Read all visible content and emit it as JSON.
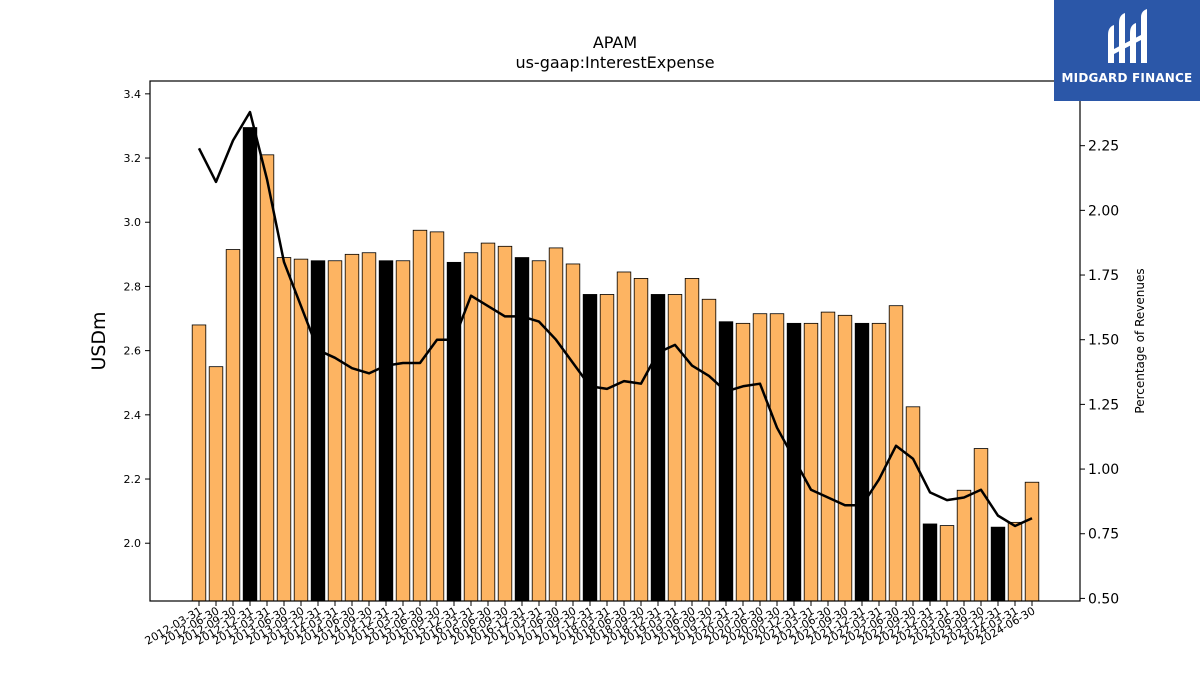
{
  "brand": {
    "name": "MIDGARD FINANCE",
    "color": "#2b57a8"
  },
  "colors": {
    "bar_default": "#fdb462",
    "bar_highlight": "#000000",
    "line": "#000000"
  },
  "chart_data": {
    "type": "bar",
    "title": "APAM",
    "subtitle": "us-gaap:InterestExpense",
    "ylabel": "USDm",
    "y2label": "Percentage of Revenues",
    "ylim": [
      1.82,
      3.44
    ],
    "y2lim": [
      0.49,
      2.5
    ],
    "yticks": [
      "2.0",
      "2.2",
      "2.4",
      "2.6",
      "2.8",
      "3.0",
      "3.2",
      "3.4"
    ],
    "y2ticks": [
      "0.50",
      "0.75",
      "1.00",
      "1.25",
      "1.50",
      "1.75",
      "2.00",
      "2.25"
    ],
    "categories": [
      "2012-03-31",
      "2012-06-30",
      "2012-09-30",
      "2012-12-31",
      "2013-03-31",
      "2013-06-30",
      "2013-09-30",
      "2013-12-31",
      "2014-03-31",
      "2014-06-30",
      "2014-09-30",
      "2014-12-31",
      "2015-03-31",
      "2015-06-30",
      "2015-09-30",
      "2015-12-31",
      "2016-03-31",
      "2016-06-30",
      "2016-09-30",
      "2016-12-31",
      "2017-03-31",
      "2017-06-30",
      "2017-09-30",
      "2017-12-31",
      "2018-03-31",
      "2018-06-30",
      "2018-09-30",
      "2018-12-31",
      "2019-03-31",
      "2019-06-30",
      "2019-09-30",
      "2019-12-31",
      "2020-03-31",
      "2020-06-30",
      "2020-09-30",
      "2020-12-31",
      "2021-03-31",
      "2021-06-30",
      "2021-09-30",
      "2021-12-31",
      "2022-03-31",
      "2022-06-30",
      "2022-09-30",
      "2022-12-31",
      "2023-03-31",
      "2023-06-30",
      "2023-09-30",
      "2023-12-31",
      "2024-03-31",
      "2024-06-30"
    ],
    "xtick_labels": [
      "2012-03-31",
      "2012-06-30",
      "2012-09-30",
      "2012-12-31",
      "2013-03-31",
      "2013-06-30",
      "2013-09-30",
      "2013-12-31",
      "2014-03-31",
      "2014-06-30",
      "2014-09-30",
      "2014-12-31",
      "2015-03-31",
      "2015-06-30",
      "2015-09-30",
      "2015-12-31",
      "2016-03-31",
      "2016-06-30",
      "2016-09-30",
      "2016-12-31",
      "2017-03-31",
      "2017-06-30",
      "2017-09-30",
      "2017-12-31",
      "2018-03-31",
      "2018-06-30",
      "2018-09-30",
      "2018-12-31",
      "2019-03-31",
      "2019-06-30",
      "2019-09-30",
      "2019-12-31",
      "2020-03-31",
      "2020-06-30",
      "2020-09-30",
      "2020-12-31",
      "2021-03-31",
      "2021-06-30",
      "2021-09-30",
      "2021-12-31",
      "2022-03-31",
      "2022-06-30",
      "2022-09-30",
      "2022-12-31",
      "2023-03-31",
      "2023-06-30",
      "2023-09-30",
      "2023-12-31",
      "2024-03-31",
      "2024-06-30"
    ],
    "highlight_indices": [
      3,
      7,
      11,
      15,
      19,
      23,
      27,
      31,
      35,
      39,
      43,
      47
    ],
    "series": [
      {
        "type": "bar",
        "axis": "left",
        "values": [
          2.68,
          2.55,
          2.915,
          3.295,
          3.21,
          2.89,
          2.885,
          2.88,
          2.88,
          2.9,
          2.905,
          2.88,
          2.88,
          2.975,
          2.97,
          2.875,
          2.905,
          2.935,
          2.925,
          2.89,
          2.88,
          2.92,
          2.87,
          2.775,
          2.775,
          2.845,
          2.825,
          2.775,
          2.775,
          2.825,
          2.76,
          2.69,
          2.685,
          2.715,
          2.715,
          2.685,
          2.685,
          2.72,
          2.71,
          2.685,
          2.685,
          2.74,
          2.425,
          2.06,
          2.055,
          2.165,
          2.295,
          2.05,
          2.065,
          2.19
        ]
      },
      {
        "type": "line",
        "axis": "right",
        "values": [
          2.24,
          2.11,
          2.27,
          2.38,
          2.12,
          1.8,
          1.63,
          1.46,
          1.43,
          1.39,
          1.37,
          1.4,
          1.41,
          1.41,
          1.5,
          1.5,
          1.67,
          1.63,
          1.59,
          1.59,
          1.57,
          1.5,
          1.41,
          1.32,
          1.31,
          1.34,
          1.33,
          1.45,
          1.48,
          1.4,
          1.36,
          1.3,
          1.32,
          1.33,
          1.16,
          1.04,
          0.92,
          0.89,
          0.86,
          0.86,
          0.96,
          1.09,
          1.04,
          0.91,
          0.88,
          0.89,
          0.92,
          0.82,
          0.78,
          0.81
        ]
      }
    ]
  }
}
